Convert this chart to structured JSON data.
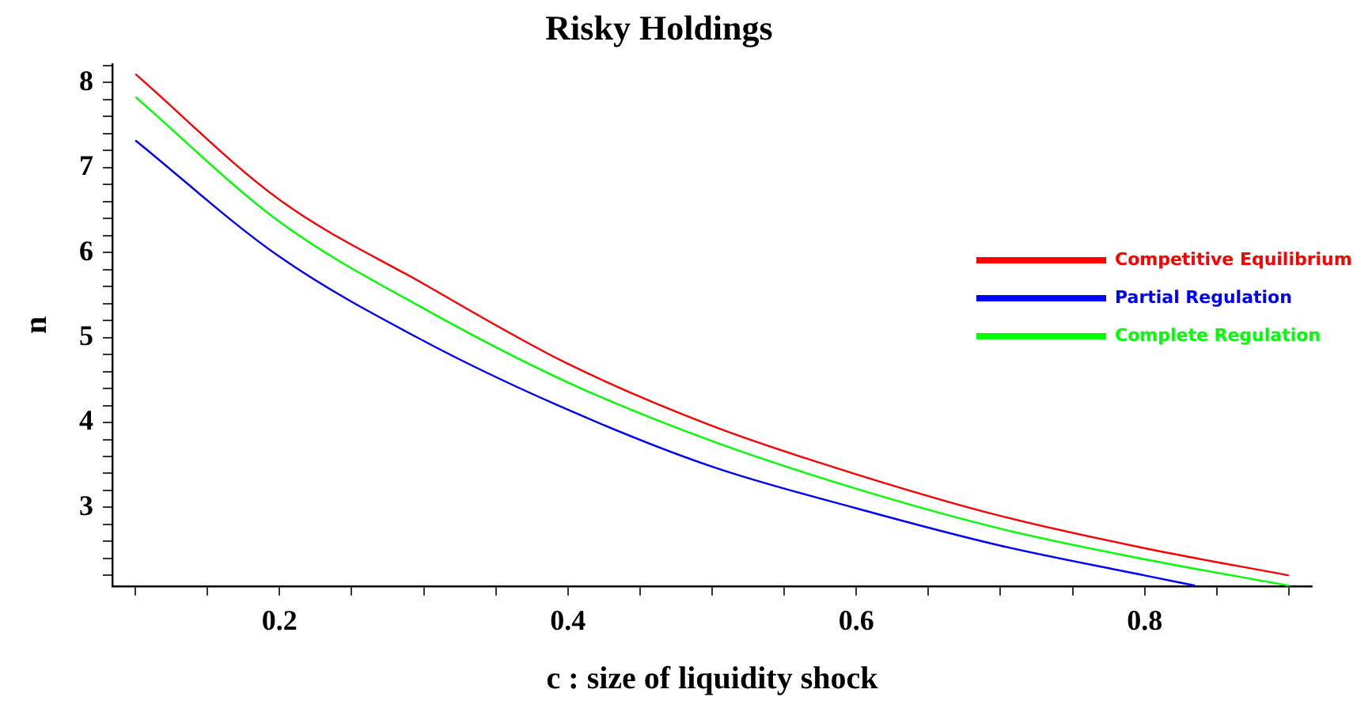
{
  "chart_data": {
    "type": "line",
    "title": "Risky Holdings",
    "xlabel": "c : size of liquidity shock",
    "ylabel": "n",
    "xlim": [
      0.084,
      0.916
    ],
    "ylim": [
      2.075,
      8.22
    ],
    "xticks": [
      {
        "value": 0.1,
        "label": null
      },
      {
        "value": 0.15,
        "label": null
      },
      {
        "value": 0.2,
        "label": "0.2"
      },
      {
        "value": 0.25,
        "label": null
      },
      {
        "value": 0.3,
        "label": null
      },
      {
        "value": 0.35,
        "label": null
      },
      {
        "value": 0.4,
        "label": "0.4"
      },
      {
        "value": 0.45,
        "label": null
      },
      {
        "value": 0.5,
        "label": null
      },
      {
        "value": 0.55,
        "label": null
      },
      {
        "value": 0.6,
        "label": "0.6"
      },
      {
        "value": 0.65,
        "label": null
      },
      {
        "value": 0.7,
        "label": null
      },
      {
        "value": 0.75,
        "label": null
      },
      {
        "value": 0.8,
        "label": "0.8"
      },
      {
        "value": 0.85,
        "label": null
      },
      {
        "value": 0.9,
        "label": null
      }
    ],
    "yticks": [
      {
        "value": 2.2,
        "label": null
      },
      {
        "value": 2.4,
        "label": null
      },
      {
        "value": 2.6,
        "label": null
      },
      {
        "value": 2.8,
        "label": null
      },
      3,
      {
        "value": 3.2,
        "label": null
      },
      {
        "value": 3.4,
        "label": null
      },
      {
        "value": 3.6,
        "label": null
      },
      {
        "value": 3.8,
        "label": null
      },
      4,
      {
        "value": 4.2,
        "label": null
      },
      {
        "value": 4.4,
        "label": null
      },
      {
        "value": 4.6,
        "label": null
      },
      {
        "value": 4.8,
        "label": null
      },
      5,
      {
        "value": 5.2,
        "label": null
      },
      {
        "value": 5.4,
        "label": null
      },
      {
        "value": 5.6,
        "label": null
      },
      {
        "value": 5.8,
        "label": null
      },
      6,
      {
        "value": 6.2,
        "label": null
      },
      {
        "value": 6.4,
        "label": null
      },
      {
        "value": 6.6,
        "label": null
      },
      {
        "value": 6.8,
        "label": null
      },
      7,
      {
        "value": 7.2,
        "label": null
      },
      {
        "value": 7.4,
        "label": null
      },
      {
        "value": 7.6,
        "label": null
      },
      {
        "value": 7.8,
        "label": null
      },
      8,
      {
        "value": 8.2,
        "label": null
      }
    ],
    "grid": false,
    "legend": "right",
    "marker": "none",
    "line_style": "solid",
    "series": [
      {
        "name": "Competitive Equilibrium",
        "color": "#ff0000",
        "x": [
          0.1,
          0.2,
          0.3,
          0.4,
          0.5,
          0.6,
          0.7,
          0.8,
          0.9
        ],
        "values": [
          8.1,
          6.62,
          5.63,
          4.69,
          3.96,
          3.39,
          2.9,
          2.52,
          2.2
        ]
      },
      {
        "name": "Partial Regulation",
        "color": "#0000ff",
        "x": [
          0.1,
          0.2,
          0.3,
          0.4,
          0.5,
          0.6,
          0.7,
          0.8,
          0.835
        ],
        "values": [
          7.32,
          5.95,
          4.96,
          4.15,
          3.48,
          2.99,
          2.55,
          2.2,
          2.08
        ]
      },
      {
        "name": "Complete Regulation",
        "color": "#00ff00",
        "x": [
          0.1,
          0.2,
          0.3,
          0.4,
          0.5,
          0.6,
          0.7,
          0.8,
          0.9
        ],
        "values": [
          7.83,
          6.36,
          5.34,
          4.47,
          3.78,
          3.22,
          2.75,
          2.39,
          2.08
        ]
      }
    ]
  }
}
